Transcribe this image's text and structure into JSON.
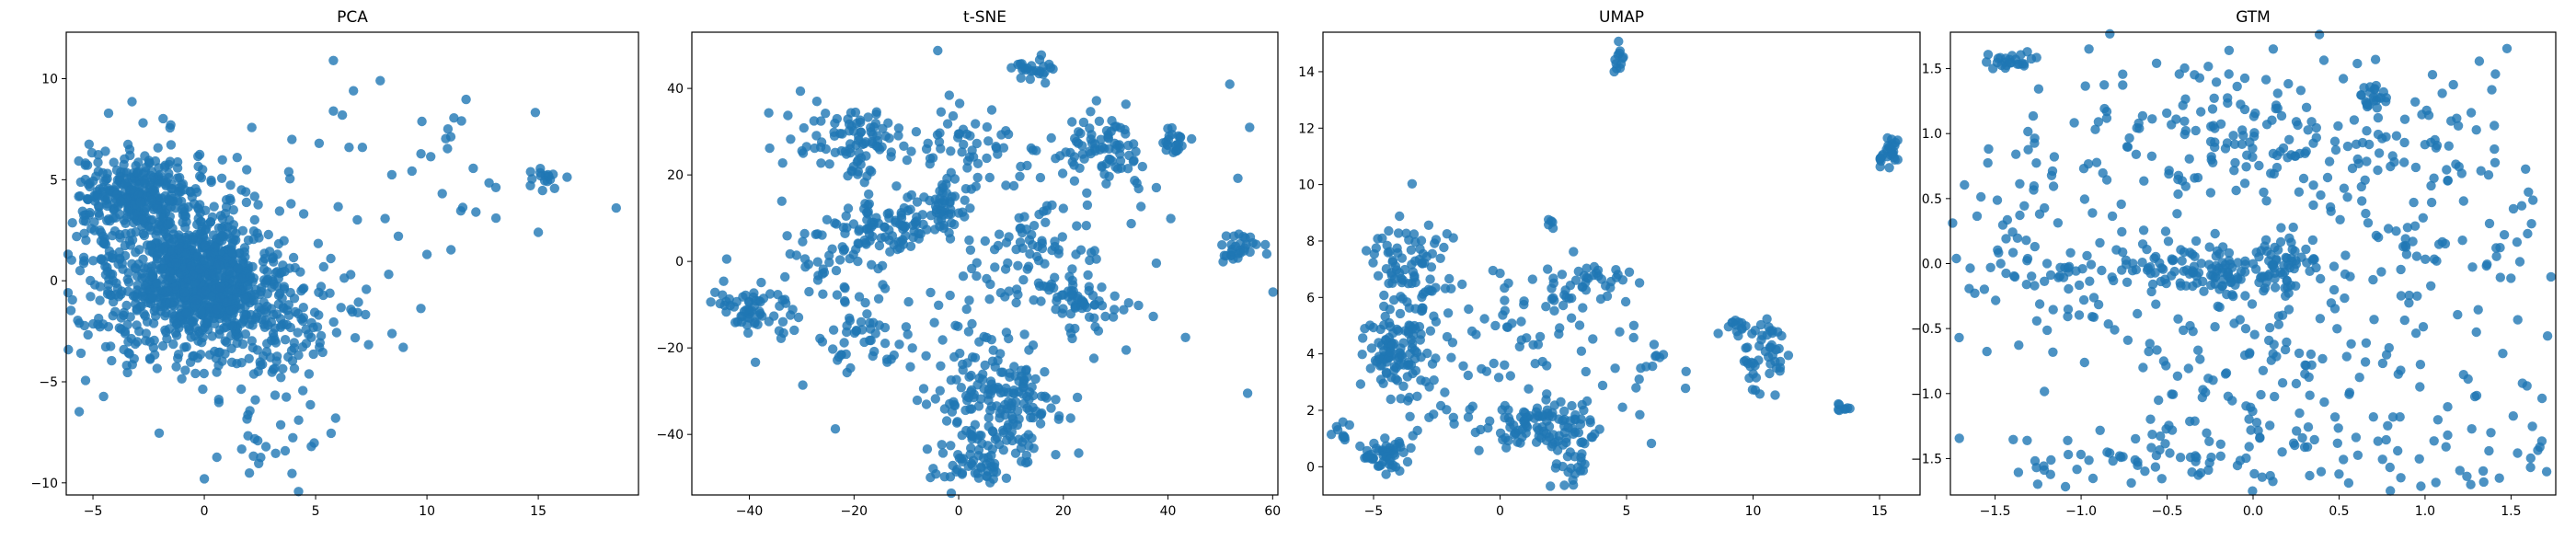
{
  "chart_data": [
    {
      "type": "scatter",
      "title": "PCA",
      "xlabel": "",
      "ylabel": "",
      "xlim": [
        -6.2,
        19.5
      ],
      "ylim": [
        -10.6,
        12.3
      ],
      "xticks": [
        -5,
        0,
        5,
        10,
        15
      ],
      "yticks": [
        -10,
        -5,
        0,
        5,
        10
      ],
      "color": "#1f77b4",
      "grid": false,
      "legend": "none",
      "clusters": [
        {
          "cx": -1.5,
          "cy": 1.0,
          "sx": 2.6,
          "sy": 2.6,
          "n": 650
        },
        {
          "cx": 0.0,
          "cy": 0.0,
          "sx": 1.2,
          "sy": 1.3,
          "n": 450
        },
        {
          "cx": -3.2,
          "cy": 4.4,
          "sx": 1.1,
          "sy": 0.9,
          "n": 220
        },
        {
          "cx": 3.0,
          "cy": -2.0,
          "sx": 2.2,
          "sy": 1.6,
          "n": 200
        },
        {
          "cx": 2.5,
          "cy": -8.5,
          "sx": 1.4,
          "sy": 1.0,
          "n": 22
        },
        {
          "cx": 10.5,
          "cy": 5.5,
          "sx": 2.5,
          "sy": 2.3,
          "n": 25
        },
        {
          "cx": 15.3,
          "cy": 5.0,
          "sx": 0.4,
          "sy": 0.3,
          "n": 15
        }
      ],
      "points": [
        [
          5.8,
          10.9
        ],
        [
          6.7,
          9.4
        ],
        [
          7.9,
          9.9
        ],
        [
          6.2,
          8.2
        ],
        [
          5.8,
          8.4
        ],
        [
          6.5,
          6.6
        ],
        [
          7.1,
          6.6
        ],
        [
          18.5,
          3.6
        ],
        [
          15.0,
          2.4
        ],
        [
          0.0,
          -9.8
        ],
        [
          5.9,
          -6.8
        ],
        [
          10.0,
          1.3
        ],
        [
          12.2,
          3.4
        ],
        [
          13.1,
          3.1
        ]
      ]
    },
    {
      "type": "scatter",
      "title": "t-SNE",
      "xlabel": "",
      "ylabel": "",
      "xlim": [
        -51,
        61
      ],
      "ylim": [
        -54,
        53
      ],
      "xticks": [
        -40,
        -20,
        0,
        20,
        40,
        60
      ],
      "yticks": [
        -40,
        -20,
        0,
        20,
        40
      ],
      "color": "#1f77b4",
      "grid": false,
      "legend": "none",
      "clusters": [
        {
          "cx": -20,
          "cy": 28,
          "sx": 6,
          "sy": 4,
          "n": 90
        },
        {
          "cx": -15,
          "cy": 8,
          "sx": 5,
          "sy": 4,
          "n": 80
        },
        {
          "cx": -40,
          "cy": -11,
          "sx": 4,
          "sy": 3.5,
          "n": 60
        },
        {
          "cx": 7,
          "cy": -35,
          "sx": 6,
          "sy": 8,
          "n": 190
        },
        {
          "cx": 3,
          "cy": -48,
          "sx": 4,
          "sy": 1.5,
          "n": 30
        },
        {
          "cx": 27,
          "cy": 26,
          "sx": 5,
          "sy": 4,
          "n": 80
        },
        {
          "cx": 14,
          "cy": 44,
          "sx": 2,
          "sy": 1.8,
          "n": 25
        },
        {
          "cx": 41,
          "cy": 28,
          "sx": 1.5,
          "sy": 1.5,
          "n": 22
        },
        {
          "cx": 53,
          "cy": 3,
          "sx": 2.5,
          "sy": 2,
          "n": 30
        },
        {
          "cx": -3,
          "cy": 12,
          "sx": 3,
          "sy": 3,
          "n": 50
        },
        {
          "cx": 25,
          "cy": -10,
          "sx": 4,
          "sy": 3,
          "n": 45
        },
        {
          "cx": -18,
          "cy": -18,
          "sx": 4,
          "sy": 4,
          "n": 40
        },
        {
          "cx": 15,
          "cy": 2,
          "sx": 5,
          "sy": 5,
          "n": 50
        },
        {
          "cx": -28,
          "cy": 0,
          "sx": 4,
          "sy": 4,
          "n": 30
        },
        {
          "cx": 0,
          "cy": 26,
          "sx": 6,
          "sy": 5,
          "n": 45
        },
        {
          "cx": 8,
          "cy": 0,
          "sx": 20,
          "sy": 20,
          "n": 140
        }
      ],
      "points": []
    },
    {
      "type": "scatter",
      "title": "UMAP",
      "xlabel": "",
      "ylabel": "",
      "xlim": [
        -7.0,
        16.6
      ],
      "ylim": [
        -1.0,
        15.4
      ],
      "xticks": [
        -5,
        0,
        5,
        10,
        15
      ],
      "yticks": [
        0,
        2,
        4,
        6,
        8,
        10,
        12,
        14
      ],
      "color": "#1f77b4",
      "grid": false,
      "legend": "none",
      "clusters": [
        {
          "cx": -4.2,
          "cy": 4.2,
          "sx": 0.6,
          "sy": 0.8,
          "n": 90
        },
        {
          "cx": -3.6,
          "cy": 7.0,
          "sx": 0.8,
          "sy": 1.1,
          "n": 90
        },
        {
          "cx": -4.6,
          "cy": 0.5,
          "sx": 0.5,
          "sy": 0.3,
          "n": 50
        },
        {
          "cx": -6.2,
          "cy": 1.2,
          "sx": 0.2,
          "sy": 0.15,
          "n": 10
        },
        {
          "cx": -2.5,
          "cy": 3.0,
          "sx": 1.0,
          "sy": 1.0,
          "n": 30
        },
        {
          "cx": 1.5,
          "cy": 1.5,
          "sx": 1.2,
          "sy": 0.5,
          "n": 100
        },
        {
          "cx": 2.8,
          "cy": 0.2,
          "sx": 0.4,
          "sy": 0.6,
          "n": 30
        },
        {
          "cx": 3.5,
          "cy": 6.5,
          "sx": 0.8,
          "sy": 0.4,
          "n": 40
        },
        {
          "cx": 0.5,
          "cy": 5.0,
          "sx": 1.2,
          "sy": 1.2,
          "n": 45
        },
        {
          "cx": 10.4,
          "cy": 3.8,
          "sx": 0.5,
          "sy": 0.6,
          "n": 40
        },
        {
          "cx": 9.8,
          "cy": 4.9,
          "sx": 0.7,
          "sy": 0.15,
          "n": 20
        },
        {
          "cx": 15.3,
          "cy": 11.2,
          "sx": 0.25,
          "sy": 0.25,
          "n": 28
        },
        {
          "cx": 4.7,
          "cy": 14.5,
          "sx": 0.1,
          "sy": 0.25,
          "n": 12
        },
        {
          "cx": 13.6,
          "cy": 2.1,
          "sx": 0.15,
          "sy": 0.1,
          "n": 8
        },
        {
          "cx": 2.0,
          "cy": 8.7,
          "sx": 0.1,
          "sy": 0.1,
          "n": 5
        },
        {
          "cx": 4.5,
          "cy": 3.5,
          "sx": 1.2,
          "sy": 1.0,
          "n": 20
        },
        {
          "cx": 6.3,
          "cy": 3.9,
          "sx": 0.1,
          "sy": 0.1,
          "n": 4
        }
      ],
      "points": []
    },
    {
      "type": "scatter",
      "title": "GTM",
      "xlabel": "",
      "ylabel": "",
      "xlim": [
        -1.76,
        1.76
      ],
      "ylim": [
        -1.78,
        1.78
      ],
      "xticks": [
        -1.5,
        -1.0,
        -0.5,
        0.0,
        0.5,
        1.0,
        1.5
      ],
      "yticks": [
        -1.5,
        -1.0,
        -0.5,
        0.0,
        0.5,
        1.0,
        1.5
      ],
      "color": "#1f77b4",
      "grid": false,
      "legend": "none",
      "clusters": [
        {
          "cx": 0.0,
          "cy": -0.05,
          "sx": 0.25,
          "sy": 0.1,
          "n": 120
        },
        {
          "cx": -1.4,
          "cy": 1.55,
          "sx": 0.08,
          "sy": 0.03,
          "n": 25
        },
        {
          "cx": 0.7,
          "cy": 1.3,
          "sx": 0.06,
          "sy": 0.05,
          "n": 20
        },
        {
          "cx": -0.5,
          "cy": 0.0,
          "sx": 0.2,
          "sy": 0.1,
          "n": 40
        },
        {
          "cx": -1.1,
          "cy": -0.2,
          "sx": 0.2,
          "sy": 0.2,
          "n": 40
        },
        {
          "cx": 0.0,
          "cy": 1.0,
          "sx": 0.5,
          "sy": 0.25,
          "n": 140
        },
        {
          "cx": 0.0,
          "cy": -1.0,
          "sx": 0.6,
          "sy": 0.5,
          "n": 110
        },
        {
          "cx": -1.3,
          "cy": 0.5,
          "sx": 0.2,
          "sy": 0.4,
          "n": 50
        },
        {
          "cx": 1.2,
          "cy": 0.3,
          "sx": 0.3,
          "sy": 0.6,
          "n": 50
        },
        {
          "cx": 0.5,
          "cy": 0.0,
          "sx": 1.0,
          "sy": 1.0,
          "n": 220
        },
        {
          "cx": -0.5,
          "cy": -1.5,
          "sx": 0.6,
          "sy": 0.1,
          "n": 50
        },
        {
          "cx": 1.0,
          "cy": -1.4,
          "sx": 0.5,
          "sy": 0.2,
          "n": 30
        }
      ],
      "points": []
    }
  ]
}
